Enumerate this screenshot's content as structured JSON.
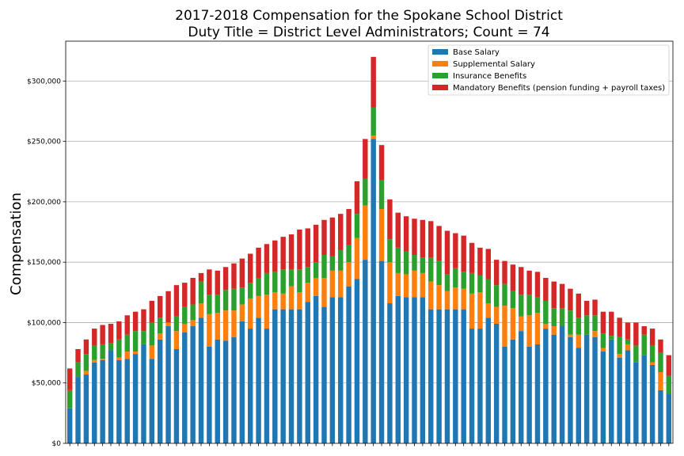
{
  "chart_data": {
    "type": "bar",
    "stacked": true,
    "title_line1": "2017-2018 Compensation for the Spokane School District",
    "title_line2": "Duty Title = District Level Administrators; Count = 74",
    "xlabel": "",
    "ylabel": "Compensation",
    "ylim": [
      0,
      333000
    ],
    "yticks": [
      0,
      50000,
      100000,
      150000,
      200000,
      250000,
      300000
    ],
    "ytick_labels": [
      "$0",
      "$50,000",
      "$100,000",
      "$150,000",
      "$200,000",
      "$250,000",
      "$300,000"
    ],
    "grid": "horizontal",
    "legend_position": "top-right",
    "colors": [
      "#1f77b4",
      "#ff7f0e",
      "#2ca02c",
      "#d62728"
    ],
    "series": [
      {
        "name": "Base Salary",
        "values": [
          29000,
          55000,
          57000,
          67000,
          69000,
          77000,
          69000,
          70000,
          74000,
          82000,
          70000,
          86000,
          97000,
          78000,
          92000,
          97000,
          104000,
          80000,
          86000,
          85000,
          88000,
          101000,
          95000,
          104000,
          95000,
          111000,
          111000,
          111000,
          111000,
          117000,
          122000,
          113000,
          121000,
          121000,
          130000,
          136000,
          152000,
          252000,
          151000,
          116000,
          122000,
          121000,
          121000,
          121000,
          111000,
          111000,
          111000,
          111000,
          111000,
          95000,
          95000,
          104000,
          99000,
          80000,
          86000,
          93000,
          80000,
          82000,
          95000,
          90000,
          97000,
          88000,
          79000,
          90000,
          88000,
          76000,
          86000,
          71000,
          77000,
          67000,
          73000,
          65000,
          44000,
          41000
        ]
      },
      {
        "name": "Supplemental Salary",
        "values": [
          0,
          0,
          3000,
          2000,
          1000,
          0,
          2000,
          6000,
          2000,
          0,
          11000,
          5000,
          3000,
          15000,
          7000,
          5000,
          12000,
          27000,
          22000,
          25000,
          22000,
          14000,
          25000,
          18000,
          28000,
          14000,
          13000,
          19000,
          14000,
          16000,
          15000,
          24000,
          22000,
          22000,
          20000,
          34000,
          45000,
          3000,
          43000,
          34000,
          19000,
          19000,
          22000,
          20000,
          23000,
          20000,
          15000,
          18000,
          17000,
          29000,
          30000,
          12000,
          14000,
          34000,
          26000,
          12000,
          26000,
          26000,
          4000,
          7000,
          0,
          2000,
          11000,
          0,
          5000,
          3000,
          0,
          3000,
          5000,
          0,
          0,
          2000,
          15000,
          0
        ]
      },
      {
        "name": "Insurance Benefits",
        "values": [
          15000,
          12000,
          14000,
          12000,
          12000,
          6000,
          15000,
          14000,
          17000,
          11000,
          19000,
          13000,
          0,
          12000,
          14000,
          13000,
          18000,
          16000,
          15000,
          17000,
          18000,
          14000,
          13000,
          15000,
          18000,
          17000,
          20000,
          14000,
          19000,
          13000,
          13000,
          19000,
          12000,
          17000,
          14000,
          20000,
          22000,
          23000,
          24000,
          19000,
          21000,
          19000,
          13000,
          13000,
          20000,
          20000,
          14000,
          16000,
          14000,
          17000,
          14000,
          20000,
          18000,
          18000,
          14000,
          18000,
          17000,
          13000,
          19000,
          15000,
          15000,
          20000,
          14000,
          16000,
          13000,
          12000,
          3000,
          14000,
          4000,
          14000,
          17000,
          14000,
          16000,
          15000
        ]
      },
      {
        "name": "Mandatory Benefits (pension funding + payroll taxes)",
        "values": [
          18000,
          11000,
          12000,
          14000,
          16000,
          16000,
          15000,
          16000,
          16000,
          18000,
          18000,
          18000,
          26000,
          26000,
          20000,
          22000,
          7000,
          21000,
          20000,
          19000,
          21000,
          24000,
          24000,
          25000,
          24000,
          26000,
          27000,
          29000,
          33000,
          32000,
          31000,
          29000,
          32000,
          30000,
          30000,
          27000,
          33000,
          42000,
          29000,
          33000,
          29000,
          29000,
          30000,
          31000,
          30000,
          29000,
          36000,
          29000,
          30000,
          25000,
          23000,
          25000,
          21000,
          19000,
          22000,
          23000,
          20000,
          21000,
          19000,
          22000,
          20000,
          18000,
          20000,
          12000,
          13000,
          18000,
          20000,
          16000,
          14000,
          19000,
          7000,
          14000,
          11000,
          17000
        ]
      }
    ]
  }
}
